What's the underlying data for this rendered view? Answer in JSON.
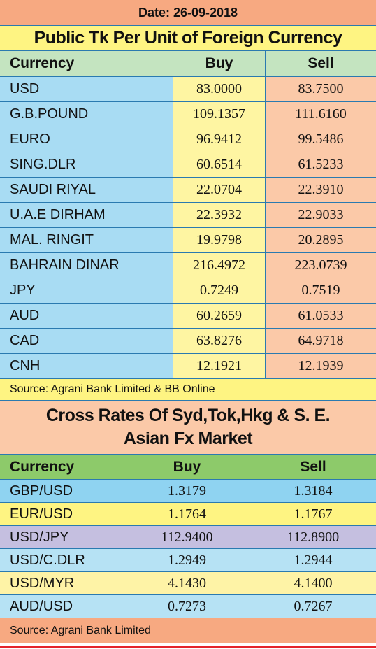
{
  "date_label": "Date: 26-09-2018",
  "table1": {
    "title": "Public Tk Per Unit of Foreign Currency",
    "headers": {
      "currency": "Currency",
      "buy": "Buy",
      "sell": "Sell"
    },
    "rows": [
      {
        "currency": "USD",
        "buy": "83.0000",
        "sell": "83.7500"
      },
      {
        "currency": "G.B.POUND",
        "buy": "109.1357",
        "sell": "111.6160"
      },
      {
        "currency": "EURO",
        "buy": "96.9412",
        "sell": "99.5486"
      },
      {
        "currency": "SING.DLR",
        "buy": "60.6514",
        "sell": "61.5233"
      },
      {
        "currency": "SAUDI RIYAL",
        "buy": "22.0704",
        "sell": "22.3910"
      },
      {
        "currency": "U.A.E DIRHAM",
        "buy": "22.3932",
        "sell": "22.9033"
      },
      {
        "currency": "MAL. RINGIT",
        "buy": "19.9798",
        "sell": "20.2895"
      },
      {
        "currency": "BAHRAIN DINAR",
        "buy": "216.4972",
        "sell": "223.0739"
      },
      {
        "currency": "JPY",
        "buy": "0.7249",
        "sell": "0.7519"
      },
      {
        "currency": "AUD",
        "buy": "60.2659",
        "sell": "61.0533"
      },
      {
        "currency": "CAD",
        "buy": "63.8276",
        "sell": "64.9718"
      },
      {
        "currency": "CNH",
        "buy": "12.1921",
        "sell": "12.1939"
      }
    ],
    "source": "Source: Agrani Bank Limited & BB Online"
  },
  "table2": {
    "title_line1": "Cross Rates Of Syd,Tok,Hkg & S. E.",
    "title_line2": "Asian Fx Market",
    "headers": {
      "currency": "Currency",
      "buy": "Buy",
      "sell": "Sell"
    },
    "rows": [
      {
        "currency": "GBP/USD",
        "buy": "1.3179",
        "sell": "1.3184",
        "color": "#8fd3f1"
      },
      {
        "currency": "EUR/USD",
        "buy": "1.1764",
        "sell": "1.1767",
        "color": "#fef482"
      },
      {
        "currency": "USD/JPY",
        "buy": "112.9400",
        "sell": "112.8900",
        "color": "#c5bfe0"
      },
      {
        "currency": "USD/C.DLR",
        "buy": "1.2949",
        "sell": "1.2944",
        "color": "#b6e2f4"
      },
      {
        "currency": "USD/MYR",
        "buy": "4.1430",
        "sell": "4.1400",
        "color": "#fef3a6"
      },
      {
        "currency": "AUD/USD",
        "buy": "0.7273",
        "sell": "0.7267",
        "color": "#b6e2f4"
      }
    ],
    "source": "Source:  Agrani Bank Limited"
  },
  "colors": {
    "date_bar": "#f7a981",
    "title_bar": "#fef482",
    "border": "#2a7ab0",
    "bottom_rule": "#e3242b"
  }
}
